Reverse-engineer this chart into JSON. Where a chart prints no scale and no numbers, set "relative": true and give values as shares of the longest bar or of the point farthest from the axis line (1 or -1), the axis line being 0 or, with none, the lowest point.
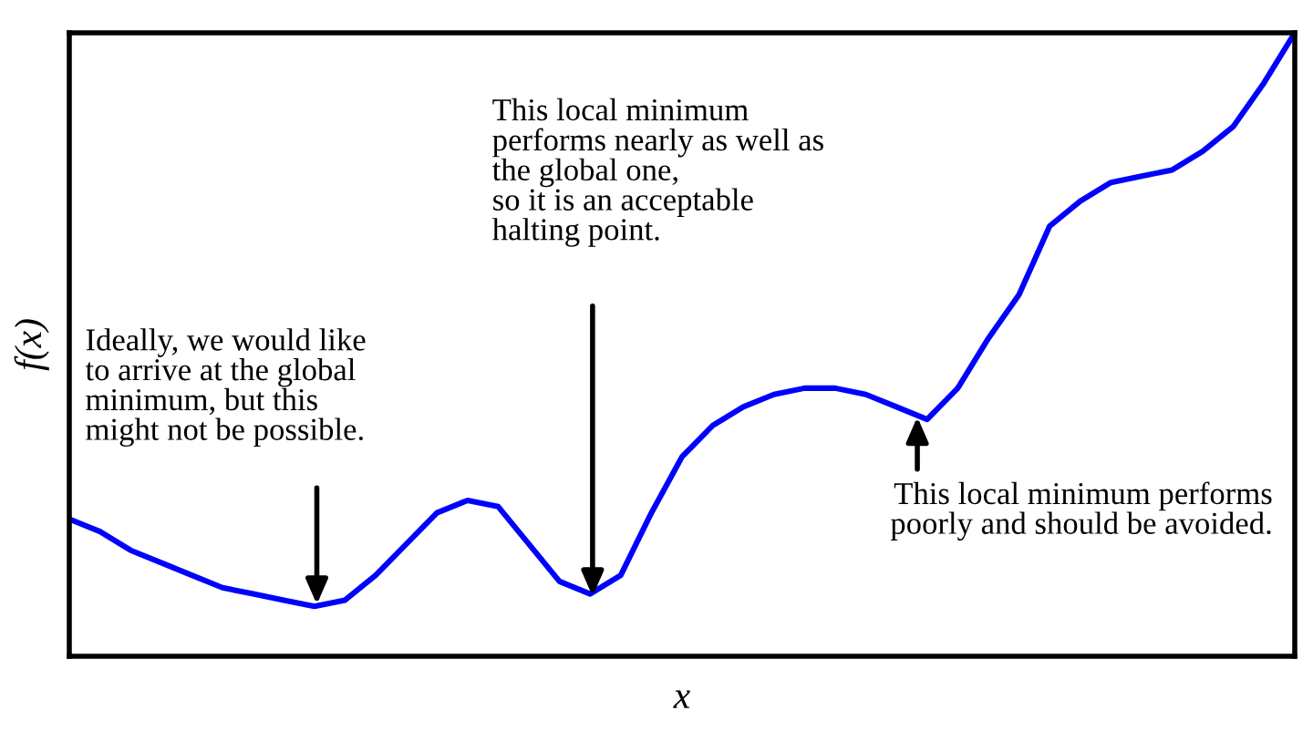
{
  "chart_data": {
    "type": "line",
    "relative": true,
    "xlabel": "x",
    "ylabel": "f(x)",
    "color": "#0000ff",
    "categories": [
      null,
      null,
      null,
      null,
      null,
      null,
      null,
      null,
      null,
      null,
      null,
      null,
      null,
      null,
      null,
      null,
      null,
      null,
      null,
      null,
      null,
      null,
      null,
      null,
      null,
      null,
      null,
      null,
      null,
      null,
      null,
      null,
      null,
      null,
      null,
      null,
      null,
      null,
      null,
      null,
      null
    ],
    "values": [
      0.22,
      0.2,
      0.17,
      0.15,
      0.13,
      0.11,
      0.1,
      0.09,
      0.08,
      0.09,
      0.13,
      0.18,
      0.23,
      0.25,
      0.24,
      0.18,
      0.12,
      0.1,
      0.13,
      0.23,
      0.32,
      0.37,
      0.4,
      0.42,
      0.43,
      0.43,
      0.42,
      0.4,
      0.38,
      0.43,
      0.51,
      0.58,
      0.69,
      0.73,
      0.76,
      0.77,
      0.78,
      0.81,
      0.85,
      0.92,
      1
    ],
    "annotations": [
      "Ideally, we would like\nto arrive at the global\nminimum, but this\nmight not be possible.",
      "This local minimum\nperforms nearly as well as\nthe global one,\nso it is an acceptable\nhalting point.",
      "This local minimum performs\npoorly and should be avoided."
    ]
  }
}
